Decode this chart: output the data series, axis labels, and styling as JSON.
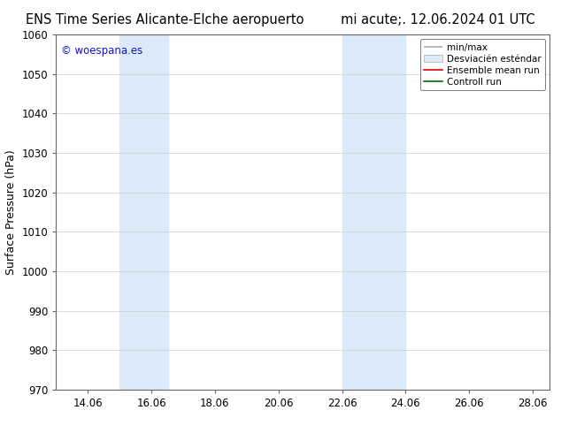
{
  "title_left": "ENS Time Series Alicante-Elche aeropuerto",
  "title_right": "mi acute;. 12.06.2024 01 UTC",
  "ylabel": "Surface Pressure (hPa)",
  "ylim": [
    970,
    1060
  ],
  "xlim_start": 13.06,
  "xlim_end": 28.6,
  "xtick_vals": [
    14.06,
    16.06,
    18.06,
    20.06,
    22.06,
    24.06,
    26.06,
    28.06
  ],
  "xtick_labels": [
    "14.06",
    "16.06",
    "18.06",
    "20.06",
    "22.06",
    "24.06",
    "26.06",
    "28.06"
  ],
  "yticks": [
    970,
    980,
    990,
    1000,
    1010,
    1020,
    1030,
    1040,
    1050,
    1060
  ],
  "shade_regions": [
    {
      "xmin": 15.06,
      "xmax": 16.6
    },
    {
      "xmin": 22.06,
      "xmax": 24.06
    }
  ],
  "shade_color": "#daeaf8",
  "watermark_text": "© woespana.es",
  "watermark_color": "#1111cc",
  "bg_color": "#ffffff",
  "spine_color": "#666666",
  "tick_color": "#444444",
  "grid_color": "#cccccc",
  "tick_fontsize": 8.5,
  "title_fontsize": 10.5,
  "ylabel_fontsize": 9,
  "legend_fontsize": 7.5,
  "legend_line_gray": "#aaaaaa",
  "legend_patch_color": "#daeaf8",
  "legend_patch_edge": "#aaaaaa",
  "legend_red": "#dd0000",
  "legend_green": "#006600"
}
